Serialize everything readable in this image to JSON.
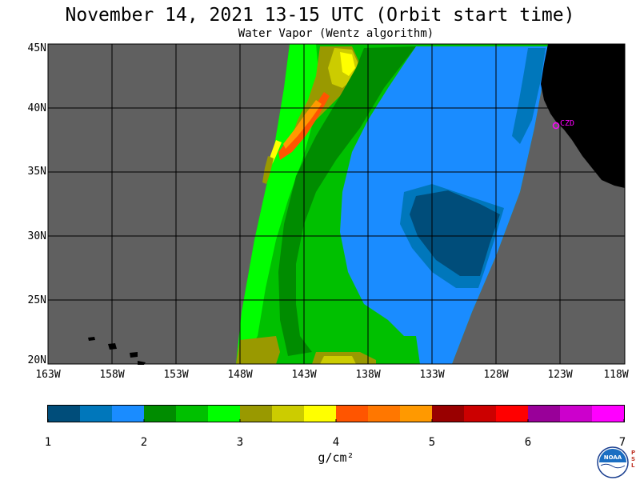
{
  "header": {
    "title": "November 14, 2021  13-15 UTC  (Orbit start time)",
    "subtitle": "Water Vapor (Wentz algorithm)"
  },
  "map": {
    "lat_labels": [
      "45N",
      "40N",
      "35N",
      "30N",
      "25N",
      "20N"
    ],
    "lon_labels": [
      "163W",
      "158W",
      "153W",
      "148W",
      "143W",
      "138W",
      "133W",
      "128W",
      "123W",
      "118W"
    ],
    "marker_label": "CZD",
    "colors": {
      "no_data": "#606060",
      "land": "#000000",
      "grid": "#000000",
      "marker": "#ff00ff"
    }
  },
  "colorbar": {
    "ticks": [
      "1",
      "2",
      "3",
      "4",
      "5",
      "6",
      "7"
    ],
    "units": "g/cm²",
    "colors": [
      "#004d7a",
      "#0077bb",
      "#1a8cff",
      "#008c00",
      "#00c000",
      "#00ff00",
      "#999900",
      "#cccc00",
      "#ffff00",
      "#ff5500",
      "#ff7700",
      "#ff9900",
      "#990000",
      "#cc0000",
      "#ff0000",
      "#990099",
      "#cc00cc",
      "#ff00ff"
    ]
  },
  "logo": {
    "name": "noaa-logo",
    "text": "NOAA",
    "side_text": "PSL"
  }
}
